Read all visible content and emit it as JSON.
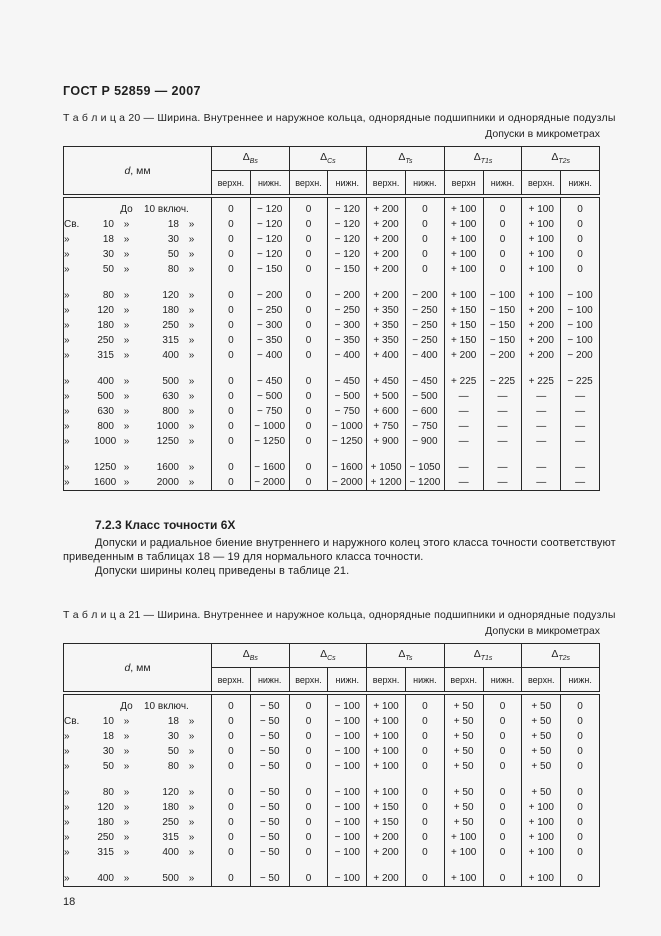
{
  "page": {
    "doc_header": "ГОСТ Р 52859 — 2007",
    "page_number": "18"
  },
  "section": {
    "heading": "7.2.3  Класс точности 6X",
    "para1_line1": "Допуски и радиальное биение внутреннего и наружного колец этого класса точности соответствуют",
    "para1_line2": "приведенным в таблицах 18 — 19 для нормального класса точности.",
    "para2": "Допуски ширины колец приведены в таблице 21."
  },
  "table20": {
    "caption": "Т а б л и ц а 20 — Ширина. Внутреннее и наружное кольца, однорядные подшипники и однорядные подузлы",
    "units": "Допуски в микрометрах",
    "d_symbol": "d",
    "d_unit": ", мм",
    "groups": [
      {
        "symbol": "Δ",
        "sub": "Bs",
        "upper": "верхн.",
        "lower": "нижн."
      },
      {
        "symbol": "Δ",
        "sub": "Cs",
        "upper": "верхн.",
        "lower": "нижн."
      },
      {
        "symbol": "Δ",
        "sub": "Ts",
        "upper": "верхн.",
        "lower": "нижн."
      },
      {
        "symbol": "Δ",
        "sub": "T1s",
        "upper": "верхн",
        "lower": "нижн."
      },
      {
        "symbol": "Δ",
        "sub": "T2s",
        "upper": "верхн.",
        "lower": "нижн."
      }
    ],
    "rows": [
      {
        "first": true,
        "d": [
          "",
          "",
          "До",
          "10 включ.",
          ""
        ],
        "v": [
          "0",
          "− 120",
          "0",
          "− 120",
          "+ 200",
          "0",
          "+ 100",
          "0",
          "+ 100",
          "0"
        ]
      },
      {
        "d": [
          "Св.",
          "10",
          "»",
          "18",
          "»"
        ],
        "v": [
          "0",
          "− 120",
          "0",
          "− 120",
          "+ 200",
          "0",
          "+ 100",
          "0",
          "+ 100",
          "0"
        ]
      },
      {
        "d": [
          "»",
          "18",
          "»",
          "30",
          "»"
        ],
        "v": [
          "0",
          "− 120",
          "0",
          "− 120",
          "+ 200",
          "0",
          "+ 100",
          "0",
          "+ 100",
          "0"
        ]
      },
      {
        "d": [
          "»",
          "30",
          "»",
          "50",
          "»"
        ],
        "v": [
          "0",
          "− 120",
          "0",
          "− 120",
          "+ 200",
          "0",
          "+ 100",
          "0",
          "+ 100",
          "0"
        ]
      },
      {
        "d": [
          "»",
          "50",
          "»",
          "80",
          "»"
        ],
        "v": [
          "0",
          "− 150",
          "0",
          "− 150",
          "+ 200",
          "0",
          "+ 100",
          "0",
          "+ 100",
          "0"
        ]
      },
      {
        "gap": true
      },
      {
        "d": [
          "»",
          "80",
          "»",
          "120",
          "»"
        ],
        "v": [
          "0",
          "− 200",
          "0",
          "− 200",
          "+ 200",
          "− 200",
          "+ 100",
          "− 100",
          "+ 100",
          "− 100"
        ]
      },
      {
        "d": [
          "»",
          "120",
          "»",
          "180",
          "»"
        ],
        "v": [
          "0",
          "− 250",
          "0",
          "− 250",
          "+ 350",
          "− 250",
          "+ 150",
          "− 150",
          "+ 200",
          "− 100"
        ]
      },
      {
        "d": [
          "»",
          "180",
          "»",
          "250",
          "»"
        ],
        "v": [
          "0",
          "− 300",
          "0",
          "− 300",
          "+ 350",
          "− 250",
          "+ 150",
          "− 150",
          "+ 200",
          "− 100"
        ]
      },
      {
        "d": [
          "»",
          "250",
          "»",
          "315",
          "»"
        ],
        "v": [
          "0",
          "− 350",
          "0",
          "− 350",
          "+ 350",
          "− 250",
          "+ 150",
          "− 150",
          "+ 200",
          "− 100"
        ]
      },
      {
        "d": [
          "»",
          "315",
          "»",
          "400",
          "»"
        ],
        "v": [
          "0",
          "− 400",
          "0",
          "− 400",
          "+ 400",
          "− 400",
          "+ 200",
          "− 200",
          "+ 200",
          "− 200"
        ]
      },
      {
        "gap": true
      },
      {
        "d": [
          "»",
          "400",
          "»",
          "500",
          "»"
        ],
        "v": [
          "0",
          "− 450",
          "0",
          "− 450",
          "+ 450",
          "− 450",
          "+ 225",
          "− 225",
          "+ 225",
          "− 225"
        ]
      },
      {
        "d": [
          "»",
          "500",
          "»",
          "630",
          "»"
        ],
        "v": [
          "0",
          "− 500",
          "0",
          "− 500",
          "+ 500",
          "− 500",
          "—",
          "—",
          "—",
          "—"
        ]
      },
      {
        "d": [
          "»",
          "630",
          "»",
          "800",
          "»"
        ],
        "v": [
          "0",
          "− 750",
          "0",
          "− 750",
          "+ 600",
          "− 600",
          "—",
          "—",
          "—",
          "—"
        ]
      },
      {
        "d": [
          "»",
          "800",
          "»",
          "1000",
          "»"
        ],
        "v": [
          "0",
          "− 1000",
          "0",
          "− 1000",
          "+ 750",
          "− 750",
          "—",
          "—",
          "—",
          "—"
        ]
      },
      {
        "d": [
          "»",
          "1000",
          "»",
          "1250",
          "»"
        ],
        "v": [
          "0",
          "− 1250",
          "0",
          "− 1250",
          "+ 900",
          "− 900",
          "—",
          "—",
          "—",
          "—"
        ]
      },
      {
        "gap": true
      },
      {
        "d": [
          "»",
          "1250",
          "»",
          "1600",
          "»"
        ],
        "v": [
          "0",
          "− 1600",
          "0",
          "− 1600",
          "+ 1050",
          "− 1050",
          "—",
          "—",
          "—",
          "—"
        ]
      },
      {
        "d": [
          "»",
          "1600",
          "»",
          "2000",
          "»"
        ],
        "v": [
          "0",
          "− 2000",
          "0",
          "− 2000",
          "+ 1200",
          "− 1200",
          "—",
          "—",
          "—",
          "—"
        ]
      }
    ]
  },
  "table21": {
    "caption": "Т а б л и ц а 21 — Ширина. Внутреннее и наружное кольца, однорядные подшипники и однорядные подузлы",
    "units": "Допуски в микрометрах",
    "d_symbol": "d",
    "d_unit": ", мм",
    "groups": [
      {
        "symbol": "Δ",
        "sub": "Bs",
        "upper": "верхн.",
        "lower": "нижн."
      },
      {
        "symbol": "Δ",
        "sub": "Cs",
        "upper": "верхн.",
        "lower": "нижн."
      },
      {
        "symbol": "Δ",
        "sub": "Ts",
        "upper": "верхн.",
        "lower": "нижн."
      },
      {
        "symbol": "Δ",
        "sub": "T1s",
        "upper": "верхн.",
        "lower": "нижн."
      },
      {
        "symbol": "Δ",
        "sub": "T2s",
        "upper": "верхн.",
        "lower": "нижн."
      }
    ],
    "rows": [
      {
        "first": true,
        "d": [
          "",
          "",
          "До",
          "10 включ.",
          ""
        ],
        "v": [
          "0",
          "− 50",
          "0",
          "− 100",
          "+ 100",
          "0",
          "+ 50",
          "0",
          "+ 50",
          "0"
        ]
      },
      {
        "d": [
          "Св.",
          "10",
          "»",
          "18",
          "»"
        ],
        "v": [
          "0",
          "− 50",
          "0",
          "− 100",
          "+ 100",
          "0",
          "+ 50",
          "0",
          "+ 50",
          "0"
        ]
      },
      {
        "d": [
          "»",
          "18",
          "»",
          "30",
          "»"
        ],
        "v": [
          "0",
          "− 50",
          "0",
          "− 100",
          "+ 100",
          "0",
          "+ 50",
          "0",
          "+ 50",
          "0"
        ]
      },
      {
        "d": [
          "»",
          "30",
          "»",
          "50",
          "»"
        ],
        "v": [
          "0",
          "− 50",
          "0",
          "− 100",
          "+ 100",
          "0",
          "+ 50",
          "0",
          "+ 50",
          "0"
        ]
      },
      {
        "d": [
          "»",
          "50",
          "»",
          "80",
          "»"
        ],
        "v": [
          "0",
          "− 50",
          "0",
          "− 100",
          "+ 100",
          "0",
          "+ 50",
          "0",
          "+ 50",
          "0"
        ]
      },
      {
        "gap": true
      },
      {
        "d": [
          "»",
          "80",
          "»",
          "120",
          "»"
        ],
        "v": [
          "0",
          "− 50",
          "0",
          "− 100",
          "+ 100",
          "0",
          "+ 50",
          "0",
          "+ 50",
          "0"
        ]
      },
      {
        "d": [
          "»",
          "120",
          "»",
          "180",
          "»"
        ],
        "v": [
          "0",
          "− 50",
          "0",
          "− 100",
          "+ 150",
          "0",
          "+ 50",
          "0",
          "+ 100",
          "0"
        ]
      },
      {
        "d": [
          "»",
          "180",
          "»",
          "250",
          "»"
        ],
        "v": [
          "0",
          "− 50",
          "0",
          "− 100",
          "+ 150",
          "0",
          "+ 50",
          "0",
          "+ 100",
          "0"
        ]
      },
      {
        "d": [
          "»",
          "250",
          "»",
          "315",
          "»"
        ],
        "v": [
          "0",
          "− 50",
          "0",
          "− 100",
          "+ 200",
          "0",
          "+ 100",
          "0",
          "+ 100",
          "0"
        ]
      },
      {
        "d": [
          "»",
          "315",
          "»",
          "400",
          "»"
        ],
        "v": [
          "0",
          "− 50",
          "0",
          "− 100",
          "+ 200",
          "0",
          "+ 100",
          "0",
          "+ 100",
          "0"
        ]
      },
      {
        "gap": true
      },
      {
        "d": [
          "»",
          "400",
          "»",
          "500",
          "»"
        ],
        "v": [
          "0",
          "− 50",
          "0",
          "− 100",
          "+ 200",
          "0",
          "+ 100",
          "0",
          "+ 100",
          "0"
        ]
      }
    ]
  }
}
